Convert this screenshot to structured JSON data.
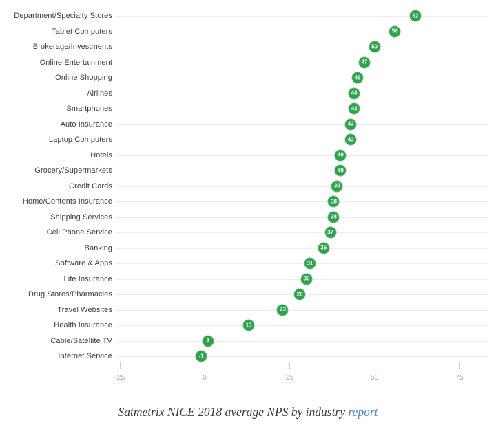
{
  "chart_data": {
    "type": "scatter",
    "title": "Satmetrix NICE 2018 average NPS by industry",
    "categories": [
      "Department/Specialty Stores",
      "Tablet Computers",
      "Brokerage/Investments",
      "Online Entertainment",
      "Online Shopping",
      "Airlines",
      "Smartphones",
      "Auto Insurance",
      "Laptop Computers",
      "Hotels",
      "Grocery/Supermarkets",
      "Credit Cards",
      "Home/Contents Insurance",
      "Shipping Services",
      "Cell Phone Service",
      "Banking",
      "Software & Apps",
      "Life Insurance",
      "Drug Stores/Pharmacies",
      "Travel Websites",
      "Health Insurance",
      "Cable/Satellite TV",
      "Internet Service"
    ],
    "values": [
      62,
      56,
      50,
      47,
      45,
      44,
      44,
      43,
      43,
      40,
      40,
      39,
      38,
      38,
      37,
      35,
      31,
      30,
      28,
      23,
      13,
      1,
      -1
    ],
    "xlabel": "",
    "ylabel": "",
    "xlim": [
      -25,
      75
    ],
    "x_ticks": [
      -25,
      0,
      25,
      50,
      75
    ],
    "legend": "none",
    "grid": "light horizontal row lines, dashed vertical baseline at 0",
    "dot_color": "#2fa14d",
    "dot_text_color": "#ffffff"
  },
  "caption": {
    "text": "Satmetrix NICE 2018 average NPS by industry ",
    "link_label": "report"
  },
  "colors": {
    "dot_fill": "#2fa14d",
    "dot_ring": "#5fb973",
    "row_line": "#ededed",
    "zero_line": "#c6c6c6",
    "tick": "#cccccc",
    "tick_label": "#a9a9a9",
    "label_text": "#3d3d45",
    "caption_text": "#3a3a3a",
    "link": "#4e86c9"
  }
}
